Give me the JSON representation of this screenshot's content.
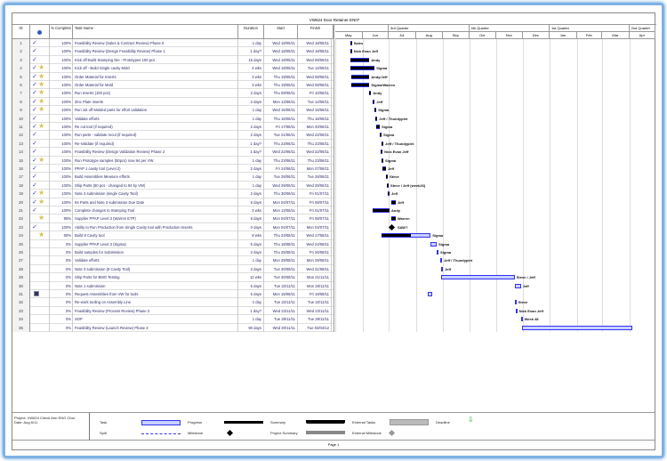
{
  "title": "VW624 Door Retainer EN07",
  "columns": {
    "id": "ID",
    "indicators": "",
    "pct": "% Complete",
    "name": "Task Name",
    "duration": "Duration",
    "start": "Start",
    "finish": "Finish"
  },
  "timescale": {
    "quarters": [
      {
        "label": "",
        "from": "01/05/11",
        "to": "01/07/11"
      },
      {
        "label": "3rd Quarter",
        "from": "01/07/11",
        "to": "01/10/11"
      },
      {
        "label": "4th Quarter",
        "from": "01/10/11",
        "to": "01/01/12"
      },
      {
        "label": "1st Quarter",
        "from": "01/01/12",
        "to": "01/04/12"
      },
      {
        "label": "2nd Quarter",
        "from": "01/04/12",
        "to": "01/05/12"
      }
    ],
    "months": [
      {
        "label": "May",
        "from": "01/05/11"
      },
      {
        "label": "Jun",
        "from": "01/06/11"
      },
      {
        "label": "Jul",
        "from": "01/07/11"
      },
      {
        "label": "Aug",
        "from": "01/08/11"
      },
      {
        "label": "Sep",
        "from": "01/09/11"
      },
      {
        "label": "Oct",
        "from": "01/10/11"
      },
      {
        "label": "Nov",
        "from": "01/11/11"
      },
      {
        "label": "Dec",
        "from": "01/12/11"
      },
      {
        "label": "Jan",
        "from": "01/01/12"
      },
      {
        "label": "Feb",
        "from": "01/02/12"
      },
      {
        "label": "Mar",
        "from": "01/03/12"
      },
      {
        "label": "Apr",
        "from": "01/04/12"
      }
    ]
  },
  "tasks": [
    {
      "id": "1",
      "check": true,
      "note": false,
      "pct": "100%",
      "p": 100,
      "name": "Feasibility Review (Sales & Contract Review) Phase 0",
      "duration": "1 day",
      "start": "Wed 18/05/11",
      "finish": "Wed 18/05/11",
      "res": "Sales"
    },
    {
      "id": "2",
      "check": true,
      "note": false,
      "pct": "100%",
      "p": 100,
      "name": "Feasibility Review (Design Feasibility Review) Phase 1",
      "duration": "1 day?",
      "start": "Wed 18/05/11",
      "finish": "Wed 18/05/11",
      "res": "Nick Evan Jeff"
    },
    {
      "id": "3",
      "check": true,
      "note": false,
      "pct": "100%",
      "p": 100,
      "name": "Kick off-Build Stamping Die - Prototypes 100 pcs",
      "duration": "15 days",
      "start": "Wed 18/05/11",
      "finish": "Wed 08/06/11",
      "res": "Andy"
    },
    {
      "id": "4",
      "check": true,
      "note": true,
      "pct": "100%",
      "p": 100,
      "name": "Kick off - Build Single cavity Mold",
      "duration": "4 wks",
      "start": "Wed 18/05/11",
      "finish": "Tue 14/06/11",
      "res": "Sigma"
    },
    {
      "id": "5",
      "check": true,
      "note": true,
      "pct": "100%",
      "p": 100,
      "name": "Order Material for Inserts",
      "duration": "3 wks",
      "start": "Thu 19/05/11",
      "finish": "Wed 08/06/11",
      "res": "Andy/Jeff"
    },
    {
      "id": "6",
      "check": true,
      "note": true,
      "pct": "100%",
      "p": 100,
      "name": "Order Material for Mold",
      "duration": "3 wks",
      "start": "Thu 19/05/11",
      "finish": "Wed 08/06/11",
      "res": "Sigma/Warren"
    },
    {
      "id": "7",
      "check": true,
      "note": true,
      "pct": "100%",
      "p": 100,
      "name": "Run Inserts (100 pcs)",
      "duration": "2 days",
      "start": "Thu 09/06/11",
      "finish": "Fri 10/06/11",
      "res": "Andy"
    },
    {
      "id": "8",
      "check": true,
      "note": true,
      "pct": "100%",
      "p": 100,
      "name": "Zinc Plate inserts",
      "duration": "2 days",
      "start": "Mon 13/06/11",
      "finish": "Tue 14/06/11",
      "res": "Jeff"
    },
    {
      "id": "9",
      "check": true,
      "note": true,
      "pct": "100%",
      "p": 100,
      "name": "Run 1st off Molded parts for effort validation",
      "duration": "1 day",
      "start": "Wed 15/06/11",
      "finish": "Wed 15/06/11",
      "res": "Sigma"
    },
    {
      "id": "10",
      "check": true,
      "note": false,
      "pct": "100%",
      "p": 100,
      "name": "Validate efforts",
      "duration": "1 day",
      "start": "Thu 16/06/11",
      "finish": "Thu 16/06/11",
      "res": "Jeff / Thundyplet"
    },
    {
      "id": "11",
      "check": true,
      "note": true,
      "pct": "100%",
      "p": 100,
      "name": "Re cut tool (if required)",
      "duration": "2 days",
      "start": "Fri 17/06/11",
      "finish": "Mon 20/06/11",
      "res": "Sigma"
    },
    {
      "id": "12",
      "check": true,
      "note": false,
      "pct": "100%",
      "p": 100,
      "name": "Run parts - validate recut (if required)",
      "duration": "2 days",
      "start": "Tue 21/06/11",
      "finish": "Wed 22/06/11",
      "res": "Sigma"
    },
    {
      "id": "13",
      "check": true,
      "note": false,
      "pct": "100%",
      "p": 100,
      "name": "Re-Validate (if required)",
      "duration": "1 day?",
      "start": "Thu 23/06/11",
      "finish": "Thu 23/06/11",
      "res": "Jeff / Thundyplet"
    },
    {
      "id": "14",
      "check": true,
      "note": false,
      "pct": "100%",
      "p": 100,
      "name": "Feasibility Review (Design Validation Review) Phase 2",
      "duration": "1 day?",
      "start": "Wed 22/06/11",
      "finish": "Wed 22/06/11",
      "res": "Nick Evan Jeff"
    },
    {
      "id": "15",
      "check": true,
      "note": true,
      "pct": "100%",
      "p": 100,
      "name": "Run Prototype samples (50pcs) now 94 per VW",
      "duration": "1 day",
      "start": "Thu 23/06/11",
      "finish": "Thu 23/06/11",
      "res": "Sigma"
    },
    {
      "id": "16",
      "check": true,
      "note": false,
      "pct": "100%",
      "p": 100,
      "name": "PPAP 1 cavity tool (Level 2)",
      "duration": "2 days",
      "start": "Fri 24/06/11",
      "finish": "Mon 27/06/11",
      "res": "Jeff"
    },
    {
      "id": "17",
      "check": true,
      "note": false,
      "pct": "100%",
      "p": 100,
      "name": "Build Assemblies Measure efforts",
      "duration": "1 day",
      "start": "Tue 28/06/11",
      "finish": "Tue 28/06/11",
      "res": "Steve"
    },
    {
      "id": "18",
      "check": true,
      "note": false,
      "pct": "100%",
      "p": 100,
      "name": "Ship Parts (50 pcs - changed to 94 by VW)",
      "duration": "1 day",
      "start": "Wed 29/06/11",
      "finish": "Wed 29/06/11",
      "res": "Steve / Jeff (week26)"
    },
    {
      "id": "19",
      "check": true,
      "note": true,
      "pct": "100%",
      "p": 100,
      "name": "Note 3 submission (single Cavity Tool)",
      "duration": "2 days",
      "start": "Thu 30/06/11",
      "finish": "Fri 01/07/11",
      "res": "Jeff"
    },
    {
      "id": "20",
      "check": true,
      "note": true,
      "pct": "100%",
      "p": 100,
      "name": "94 Parts and Note 3 submission Due Date",
      "duration": "5 days",
      "start": "Mon 04/07/11",
      "finish": "Fri 08/07/11",
      "res": "Jeff"
    },
    {
      "id": "21",
      "check": true,
      "note": false,
      "pct": "100%",
      "p": 100,
      "name": "Complete changes to Stamping Tool",
      "duration": "3 wks",
      "start": "Mon 13/06/11",
      "finish": "Fri 01/07/11",
      "res": "Andy"
    },
    {
      "id": "22",
      "check": false,
      "note": true,
      "pct": "95%",
      "p": 95,
      "name": "Supplier PPAP Level 3 (Warren ETP)",
      "duration": "5 days",
      "start": "Mon 04/07/11",
      "finish": "Fri 08/07/11",
      "res": "Warren"
    },
    {
      "id": "23",
      "check": true,
      "note": false,
      "pct": "100%",
      "p": 100,
      "name": "Ability to Run Production from Single Cavity tool with Production Inserts",
      "duration": "0 days",
      "start": "Mon 04/07/11",
      "finish": "Mon 04/07/11",
      "res": "SAW?",
      "milestone": true
    },
    {
      "id": "24",
      "check": false,
      "note": true,
      "pct": "60%",
      "p": 60,
      "name": "Build 8 Cavity tool",
      "duration": "8 wks",
      "start": "Thu 23/06/11",
      "finish": "Wed 17/08/11",
      "res": "Sigma"
    },
    {
      "id": "25",
      "check": false,
      "note": false,
      "pct": "0%",
      "p": 0,
      "name": "Supplier PPAP Level 3 (Sigma)",
      "duration": "5 days",
      "start": "Thu 18/08/11",
      "finish": "Wed 24/08/11",
      "res": "Sigma"
    },
    {
      "id": "26",
      "check": false,
      "note": false,
      "pct": "0%",
      "p": 0,
      "name": "Build samples for Submission",
      "duration": "2 days",
      "start": "Thu 25/08/11",
      "finish": "Fri 26/08/11",
      "res": "Sigma"
    },
    {
      "id": "27",
      "check": false,
      "note": false,
      "pct": "0%",
      "p": 0,
      "name": "Validate efforts",
      "duration": "1 day",
      "start": "Mon 29/08/11",
      "finish": "Mon 29/08/11",
      "res": "Jeff / Thundyplet"
    },
    {
      "id": "28",
      "check": false,
      "note": false,
      "pct": "0%",
      "p": 0,
      "name": "Note 3 submission (8 Cavity Tool)",
      "duration": "2 days",
      "start": "Tue 30/08/11",
      "finish": "Wed 31/08/11",
      "res": "Jeff"
    },
    {
      "id": "29",
      "check": false,
      "note": false,
      "pct": "0%",
      "p": 0,
      "name": "Ship Parts for BMG Testing",
      "duration": "12 wks",
      "start": "Tue 30/08/11",
      "finish": "Mon 21/11/11",
      "res": "Steve / Jeff"
    },
    {
      "id": "30",
      "check": false,
      "note": false,
      "pct": "0%",
      "p": 0,
      "name": "Note 1 submission",
      "duration": "5 days",
      "start": "Tue 22/11/11",
      "finish": "Mon 28/11/11",
      "res": "Jeff"
    },
    {
      "id": "31",
      "check": false,
      "note": false,
      "calendar": true,
      "pct": "0%",
      "p": 0,
      "name": "Request Assemblies from VW for tools",
      "duration": "5 days",
      "start": "Mon 15/08/11",
      "finish": "Fri 19/08/11",
      "res": ""
    },
    {
      "id": "32",
      "check": false,
      "note": false,
      "pct": "0%",
      "p": 0,
      "name": "Re-work tooling on Assembly Line",
      "duration": "1 day",
      "start": "Tue 22/11/11",
      "finish": "Tue 22/11/11",
      "res": "Steve"
    },
    {
      "id": "33",
      "check": false,
      "note": false,
      "pct": "0%",
      "p": 0,
      "name": "Feasibility Review (Process Review) Phase 3",
      "duration": "1 day?",
      "start": "Wed 23/11/11",
      "finish": "Wed 23/11/11",
      "res": "Nick Evan Jeff"
    },
    {
      "id": "34",
      "check": false,
      "note": false,
      "pct": "0%",
      "p": 0,
      "name": "SOP",
      "duration": "1 day",
      "start": "Tue 29/11/11",
      "finish": "Tue 29/11/11",
      "res": "Week 48"
    },
    {
      "id": "35",
      "check": false,
      "note": false,
      "pct": "0%",
      "p": 0,
      "name": "Feasibility Review (Launch Review) Phase 4",
      "duration": "90 days",
      "start": "Wed 30/11/11",
      "finish": "Tue 03/04/12",
      "res": ""
    }
  ],
  "footer": {
    "project": "Project: VW624 Check Arm ENG Char",
    "date": "Date: Aug 8/11",
    "page": "Page 1",
    "legend": {
      "task": "Task",
      "split": "Split",
      "progress": "Progress",
      "milestone": "Milestone",
      "summary": "Summary",
      "project_summary": "Project Summary",
      "external_tasks": "External Tasks",
      "external_milestone": "External Milestone",
      "deadline": "Deadline"
    }
  },
  "colors": {
    "task_fill": "#c8d0ff",
    "task_border": "#3333ee",
    "progress": "#000000",
    "deadline": "#3aa53a",
    "frame": "#7fb2e6"
  }
}
